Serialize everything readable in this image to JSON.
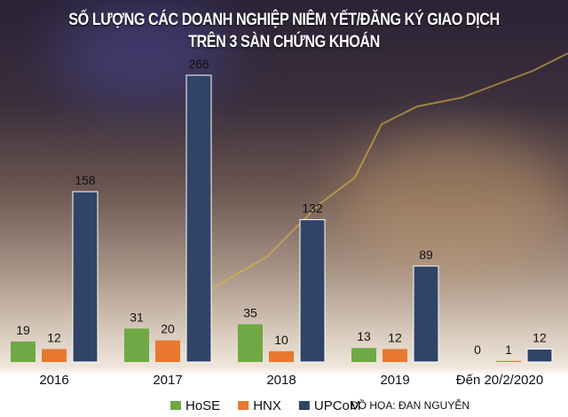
{
  "chart_data": {
    "type": "bar",
    "title": "SỐ LƯỢNG CÁC DOANH NGHIỆP NIÊM YẾT/ĐĂNG KÝ GIAO DỊCH TRÊN 3 SÀN CHỨNG KHOÁN",
    "title_lines": [
      "SỐ LƯỢNG CÁC DOANH NGHIỆP NIÊM YẾT/ĐĂNG KÝ GIAO DỊCH",
      "TRÊN 3 SÀN CHỨNG KHOÁN"
    ],
    "categories": [
      "2016",
      "2017",
      "2018",
      "2019",
      "Đến 20/2/2020"
    ],
    "series": [
      {
        "name": "HoSE",
        "color": "#6fa844",
        "values": [
          19,
          31,
          35,
          13,
          0
        ]
      },
      {
        "name": "HNX",
        "color": "#e8782e",
        "values": [
          12,
          20,
          10,
          12,
          1
        ]
      },
      {
        "name": "UPCoM",
        "color": "#2f4466",
        "values": [
          158,
          266,
          132,
          89,
          12
        ]
      }
    ],
    "legend_position": "bottom",
    "grid": false,
    "credit": "ĐỒ HỌA: ĐAN NGUYỄN"
  }
}
